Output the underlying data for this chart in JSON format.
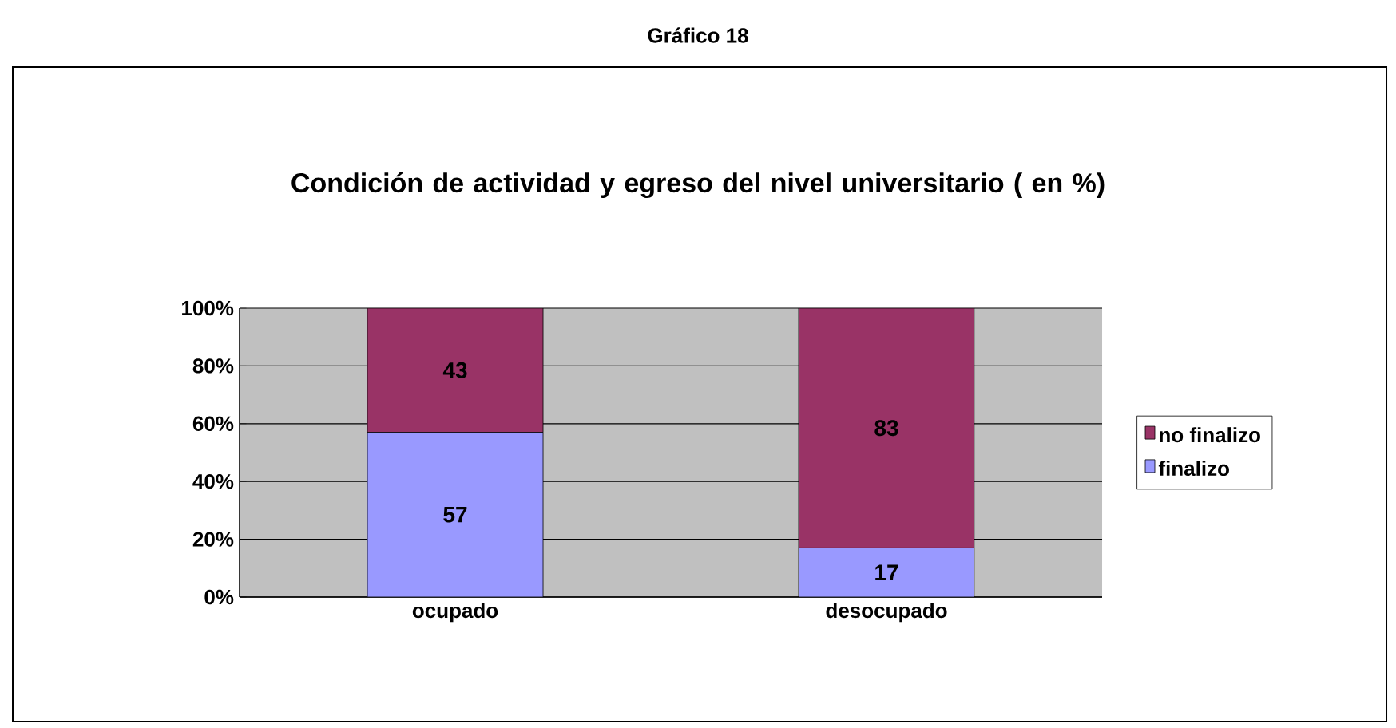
{
  "chart_data": {
    "type": "bar",
    "stacked": true,
    "title": "Condición de actividad y egreso del nivel universitario ( en %)",
    "annotations": [
      "Gráfico 18"
    ],
    "categories": [
      "ocupado",
      "desocupado"
    ],
    "series": [
      {
        "name": "finalizo",
        "color": "#9999ff",
        "values": [
          57,
          17
        ]
      },
      {
        "name": "no finalizo",
        "color": "#993366",
        "values": [
          43,
          83
        ]
      }
    ],
    "ylim": [
      0,
      100
    ],
    "yticks": [
      {
        "value": 0,
        "label": "0%"
      },
      {
        "value": 20,
        "label": "20%"
      },
      {
        "value": 40,
        "label": "40%"
      },
      {
        "value": 60,
        "label": "60%"
      },
      {
        "value": 80,
        "label": "80%"
      },
      {
        "value": 100,
        "label": "100%"
      }
    ],
    "grid": "y",
    "legend": "right",
    "data_labels": true
  }
}
